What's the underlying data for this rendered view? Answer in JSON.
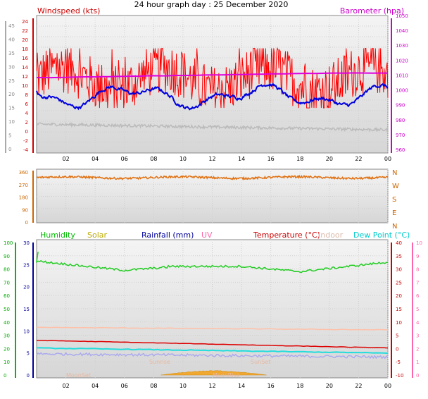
{
  "header": {
    "title": "24 hour graph day : 25 December 2020"
  },
  "x_ticks": [
    "02",
    "04",
    "06",
    "08",
    "10",
    "12",
    "14",
    "16",
    "18",
    "20",
    "22",
    "00"
  ],
  "top_panel": {
    "left_label": "Windspeed (kts)",
    "right_label": "Barometer (hpa)",
    "left_ticks": [
      "24",
      "22",
      "20",
      "18",
      "16",
      "14",
      "12",
      "10",
      "8",
      "6",
      "4",
      "2",
      "0",
      "-2",
      "-4"
    ],
    "outer_left_ticks": [
      "45",
      "40",
      "35",
      "30",
      "25",
      "20",
      "15",
      "10",
      "5",
      "0"
    ],
    "right_ticks": [
      "1050",
      "1040",
      "1030",
      "1020",
      "1010",
      "1000",
      "990",
      "980",
      "970",
      "960"
    ],
    "colors": {
      "gust": "#ff0000",
      "average": "#0000dd",
      "pressure": "#dd00dd",
      "temp_grey": "#bbbbbb",
      "left_axis": "#cc0000",
      "right_axis": "#cc00cc"
    }
  },
  "mid_panel": {
    "left_ticks": [
      "360",
      "270",
      "180",
      "90",
      "0"
    ],
    "right_ticks": [
      "N",
      "W",
      "S",
      "E",
      "N"
    ],
    "colors": {
      "direction": "#e07010",
      "axis": "#cc6600"
    }
  },
  "bottom_panel": {
    "legend": [
      {
        "label": "Humidity",
        "color": "#00bb00"
      },
      {
        "label": "Solar",
        "color": "#bbaa00"
      },
      {
        "label": "Rainfall (mm)",
        "color": "#000099"
      },
      {
        "label": "UV",
        "color": "#ff66aa"
      },
      {
        "label": "Temperature (°C)",
        "color": "#cc0000"
      },
      {
        "label": "Indoor",
        "color": "#ddbbaa"
      },
      {
        "label": "Dew Point (°C)",
        "color": "#00cccc"
      }
    ],
    "humidity_ticks": [
      "100",
      "90",
      "80",
      "70",
      "60",
      "50",
      "40",
      "30",
      "20",
      "10",
      "0"
    ],
    "rain_ticks": [
      "30",
      "25",
      "20",
      "15",
      "10",
      "5",
      "0"
    ],
    "temp_ticks": [
      "40",
      "35",
      "30",
      "25",
      "20",
      "15",
      "10",
      "5",
      "0",
      "-5",
      "-10"
    ],
    "uv_ticks": [
      "10",
      "9",
      "8",
      "7",
      "6",
      "5",
      "4",
      "3",
      "2",
      "1",
      "0"
    ],
    "annotations": {
      "moonset": "MoonSet",
      "sunrise": "Sunrise",
      "moonrise": "MoonRise",
      "sunset": "SunSet"
    }
  },
  "chart_data": [
    {
      "type": "line",
      "x_range": [
        "00:00",
        "24:00"
      ],
      "ylim": [
        -2,
        24
      ],
      "y2lim": [
        960,
        1050
      ],
      "series": [
        {
          "name": "Windspeed (kts)",
          "axis": "left",
          "approx_mean": 9.5,
          "approx_range": [
            6.5,
            15
          ]
        },
        {
          "name": "Barometer (hpa)",
          "axis": "right",
          "approx_start": 1008,
          "approx_end": 1011
        }
      ]
    },
    {
      "type": "line",
      "ylim": [
        0,
        360
      ],
      "series": [
        {
          "approx_mean": 320
        }
      ]
    },
    {
      "type": "line",
      "ylim": [
        0,
        30
      ],
      "series": [
        {
          "name": "Humidity",
          "axis": "humidity",
          "approx_start": 86,
          "approx_min": 78,
          "approx_end": 85
        },
        {
          "name": "Solar",
          "approx_peak": 3.1
        },
        {
          "name": "Temperature (°C)",
          "axis": "temp",
          "approx_start": 3,
          "approx_end": 0
        },
        {
          "name": "Indoor",
          "axis": "temp",
          "approx_start": 8,
          "approx_end": 7
        },
        {
          "name": "Dew Point (°C)",
          "axis": "temp",
          "approx_start": 0,
          "approx_end": -2
        }
      ]
    }
  ]
}
